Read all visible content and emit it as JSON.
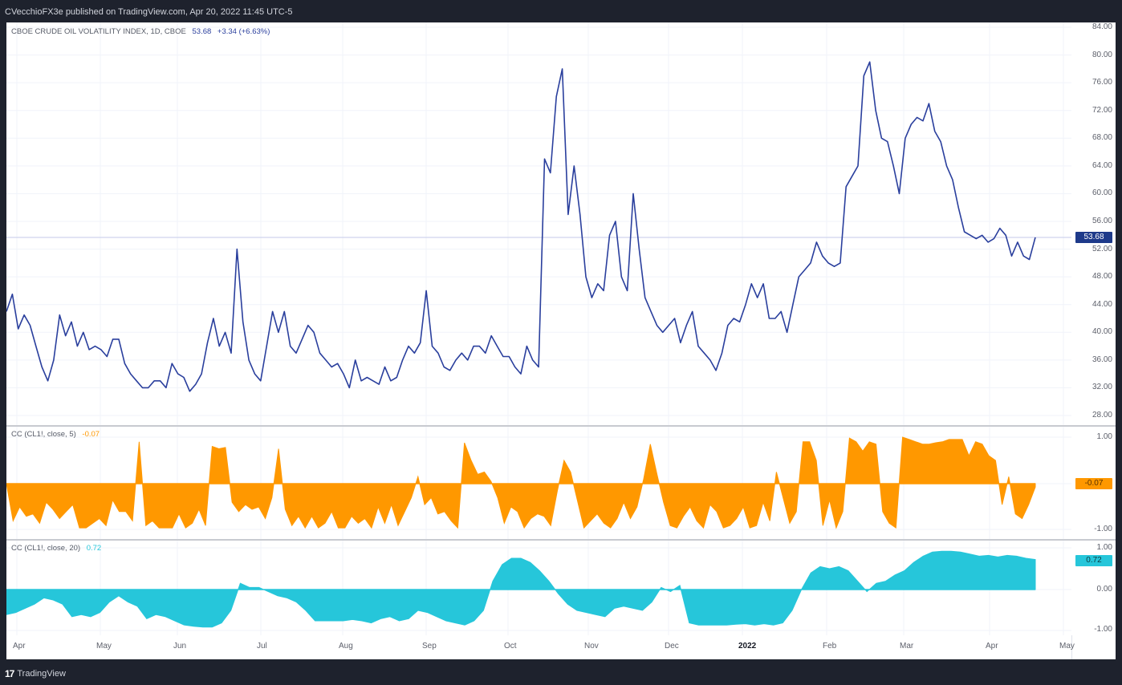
{
  "header": {
    "publisher_line": "CVecchioFX3e published on TradingView.com, Apr 20, 2022 11:45 UTC-5"
  },
  "footer": {
    "logo_mark": "17",
    "brand": "TradingView"
  },
  "main_pane": {
    "title": "CBOE CRUDE OIL VOLATILITY INDEX, 1D, CBOE",
    "last": "53.68",
    "change": "+3.34 (+6.63%)",
    "last_tag": "53.68",
    "line_color": "#2a3f9d",
    "tag_color": "#1e3a8a",
    "yticks": [
      "84.00",
      "80.00",
      "76.00",
      "72.00",
      "68.00",
      "64.00",
      "60.00",
      "56.00",
      "52.00",
      "48.00",
      "44.00",
      "40.00",
      "36.00",
      "32.00",
      "28.00"
    ]
  },
  "cc5_pane": {
    "title": "CC (CL1!, close, 5)",
    "value": "-0.07",
    "tag": "-0.07",
    "color": "#ff9800",
    "yticks": [
      "1.00",
      "-1.00"
    ]
  },
  "cc20_pane": {
    "title": "CC (CL1!, close, 20)",
    "value": "0.72",
    "tag": "0.72",
    "color": "#26c6da",
    "yticks": [
      "1.00",
      "0.00",
      "-1.00"
    ]
  },
  "x_axis": {
    "labels": [
      "Apr",
      "May",
      "Jun",
      "Jul",
      "Aug",
      "Sep",
      "Oct",
      "Nov",
      "Dec",
      "2022",
      "Feb",
      "Mar",
      "Apr",
      "May"
    ]
  },
  "chart_data": [
    {
      "type": "line",
      "title": "CBOE CRUDE OIL VOLATILITY INDEX, 1D, CBOE",
      "xlabel": "",
      "ylabel": "",
      "ylim": [
        28,
        84
      ],
      "grid": true,
      "x_ticks": [
        "Apr",
        "May",
        "Jun",
        "Jul",
        "Aug",
        "Sep",
        "Oct",
        "Nov",
        "Dec",
        "2022",
        "Feb",
        "Mar",
        "Apr",
        "May"
      ],
      "x": [
        "2021-04",
        "2021-05",
        "2021-06",
        "2021-07",
        "2021-08",
        "2021-09",
        "2021-10",
        "2021-11",
        "2021-12",
        "2022-01",
        "2022-02",
        "2022-03",
        "2022-04"
      ],
      "series": [
        {
          "name": "OVX",
          "values": [
            43,
            45.5,
            40.5,
            42.5,
            41,
            38,
            35,
            33,
            36,
            42.5,
            39.5,
            41.5,
            38,
            40,
            37.5,
            38,
            37.5,
            36.5,
            39,
            39,
            35.5,
            34,
            33,
            32,
            32,
            33,
            33,
            32,
            35.5,
            34,
            33.5,
            31.5,
            32.5,
            34,
            38.5,
            42,
            38,
            40,
            37,
            52,
            41.5,
            36,
            34,
            33,
            38,
            43,
            40,
            43,
            38,
            37,
            39,
            41,
            40,
            37,
            36,
            35,
            35.5,
            34,
            32,
            36,
            33,
            33.5,
            33,
            32.5,
            35,
            33,
            33.5,
            36,
            38,
            37,
            38.5,
            46,
            38,
            37,
            35,
            34.5,
            36,
            37,
            36,
            38,
            38,
            37,
            39.5,
            38,
            36.5,
            36.5,
            35,
            34,
            38,
            36,
            35,
            65,
            63,
            74,
            78,
            57,
            64,
            57,
            48,
            45,
            47,
            46,
            54,
            56,
            48,
            46,
            60,
            52,
            45,
            43,
            41,
            40,
            41,
            42,
            38.5,
            41,
            43,
            38,
            37,
            36,
            34.5,
            37,
            41,
            42,
            41.5,
            44,
            47,
            45,
            47,
            42,
            42,
            43,
            40,
            44,
            48,
            49,
            50,
            53,
            51,
            50,
            49.5,
            50,
            61,
            62.5,
            64,
            77,
            79,
            72,
            68,
            67.5,
            64,
            60,
            68,
            70,
            71,
            70.5,
            73,
            69,
            67.5,
            64,
            62,
            58,
            54.5,
            54,
            53.5,
            54,
            53,
            53.5,
            55,
            54,
            51,
            53,
            51,
            50.5,
            53.7
          ]
        }
      ]
    },
    {
      "type": "area",
      "title": "CC (CL1!, close, 5)",
      "ylim": [
        -1,
        1
      ],
      "series": [
        {
          "name": "CC 5",
          "values": [
            0,
            -0.8,
            -0.5,
            -0.7,
            -0.65,
            -0.85,
            -0.4,
            -0.55,
            -0.75,
            -0.6,
            -0.45,
            -0.95,
            -0.95,
            -0.85,
            -0.75,
            -0.9,
            -0.35,
            -0.6,
            -0.6,
            -0.8,
            0.9,
            -0.9,
            -0.8,
            -0.95,
            -0.95,
            -0.95,
            -0.65,
            -0.95,
            -0.85,
            -0.55,
            -0.9,
            0.8,
            0.75,
            0.78,
            -0.4,
            -0.6,
            -0.45,
            -0.55,
            -0.5,
            -0.75,
            -0.3,
            0.75,
            -0.55,
            -0.9,
            -0.7,
            -0.95,
            -0.7,
            -0.95,
            -0.85,
            -0.6,
            -0.95,
            -0.95,
            -0.7,
            -0.85,
            -0.75,
            -0.95,
            -0.5,
            -0.85,
            -0.45,
            -0.9,
            -0.6,
            -0.3,
            0.15,
            -0.45,
            -0.3,
            -0.65,
            -0.6,
            -0.8,
            -0.95,
            0.88,
            0.5,
            0.2,
            0.25,
            0.05,
            -0.3,
            -0.85,
            -0.5,
            -0.6,
            -0.95,
            -0.75,
            -0.65,
            -0.7,
            -0.9,
            -0.15,
            0.5,
            0.25,
            -0.35,
            -0.95,
            -0.8,
            -0.65,
            -0.85,
            -0.95,
            -0.75,
            -0.4,
            -0.75,
            -0.5,
            0.1,
            0.85,
            0.2,
            -0.4,
            -0.9,
            -0.95,
            -0.7,
            -0.5,
            -0.8,
            -0.95,
            -0.45,
            -0.6,
            -0.95,
            -0.9,
            -0.75,
            -0.5,
            -0.95,
            -0.9,
            -0.4,
            -0.8,
            0.25,
            -0.3,
            -0.85,
            -0.6,
            0.9,
            0.9,
            0.5,
            -0.9,
            -0.35,
            -0.95,
            -0.6,
            0.98,
            0.9,
            0.7,
            0.9,
            0.85,
            -0.6,
            -0.85,
            -0.95,
            1,
            0.95,
            0.9,
            0.85,
            0.85,
            0.88,
            0.9,
            0.95,
            0.95,
            0.95,
            0.6,
            0.9,
            0.85,
            0.6,
            0.5,
            -0.45,
            0.15,
            -0.65,
            -0.75,
            -0.45,
            -0.07
          ]
        }
      ]
    },
    {
      "type": "area",
      "title": "CC (CL1!, close, 20)",
      "ylim": [
        -1,
        1
      ],
      "series": [
        {
          "name": "CC 20",
          "values": [
            -0.6,
            -0.55,
            -0.45,
            -0.35,
            -0.2,
            -0.25,
            -0.35,
            -0.65,
            -0.6,
            -0.65,
            -0.55,
            -0.3,
            -0.15,
            -0.3,
            -0.4,
            -0.7,
            -0.6,
            -0.65,
            -0.75,
            -0.85,
            -0.88,
            -0.9,
            -0.9,
            -0.8,
            -0.5,
            0.15,
            0.05,
            0.05,
            -0.05,
            -0.15,
            -0.2,
            -0.3,
            -0.5,
            -0.75,
            -0.75,
            -0.75,
            -0.75,
            -0.72,
            -0.75,
            -0.8,
            -0.7,
            -0.65,
            -0.75,
            -0.7,
            -0.5,
            -0.55,
            -0.65,
            -0.75,
            -0.8,
            -0.85,
            -0.75,
            -0.5,
            0.2,
            0.6,
            0.75,
            0.75,
            0.65,
            0.45,
            0.2,
            -0.1,
            -0.35,
            -0.5,
            -0.55,
            -0.6,
            -0.65,
            -0.45,
            -0.4,
            -0.45,
            -0.5,
            -0.3,
            0.05,
            -0.05,
            0.1,
            -0.8,
            -0.85,
            -0.85,
            -0.85,
            -0.85,
            -0.83,
            -0.82,
            -0.85,
            -0.82,
            -0.85,
            -0.8,
            -0.5,
            0,
            0.4,
            0.55,
            0.5,
            0.55,
            0.45,
            0.2,
            -0.05,
            0.15,
            0.2,
            0.35,
            0.45,
            0.65,
            0.8,
            0.9,
            0.92,
            0.92,
            0.9,
            0.85,
            0.8,
            0.82,
            0.78,
            0.82,
            0.8,
            0.75,
            0.72
          ]
        }
      ]
    }
  ]
}
